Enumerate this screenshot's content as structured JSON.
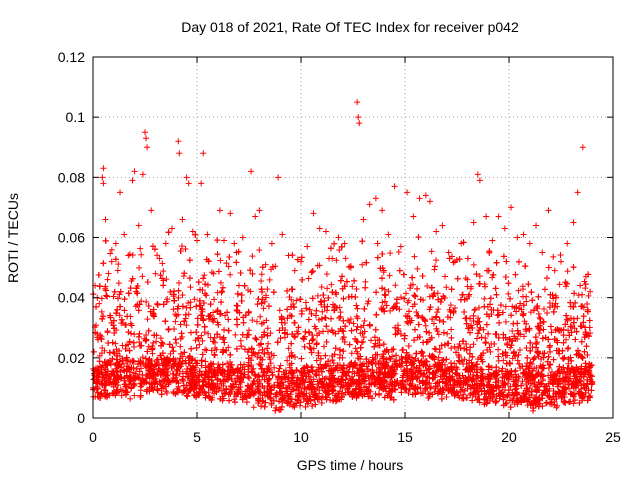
{
  "chart_data": {
    "type": "scatter",
    "title": "Day 018 of 2021, Rate Of TEC Index for receiver p042",
    "xlabel": "GPS time / hours",
    "ylabel": "ROTI / TECUs",
    "xlim": [
      0,
      25
    ],
    "ylim": [
      0,
      0.12
    ],
    "xticks": [
      0,
      5,
      10,
      15,
      20,
      25
    ],
    "xtick_labels": [
      "0",
      "5",
      "10",
      "15",
      "20",
      "25"
    ],
    "yticks": [
      0,
      0.02,
      0.04,
      0.06,
      0.08,
      0.1,
      0.12
    ],
    "ytick_labels": [
      "0",
      "0.02",
      "0.04",
      "0.06",
      "0.08",
      "0.1",
      "0.12"
    ],
    "grid": true,
    "marker": "+",
    "series_color": "#ff0000",
    "series": [
      {
        "name": "ROTI",
        "points": [
          [
            0.1,
            0.044
          ],
          [
            0.2,
            0.028
          ],
          [
            0.3,
            0.038
          ],
          [
            0.45,
            0.08
          ],
          [
            0.5,
            0.083
          ],
          [
            0.5,
            0.078
          ],
          [
            0.6,
            0.066
          ],
          [
            0.7,
            0.046
          ],
          [
            0.9,
            0.052
          ],
          [
            1.1,
            0.058
          ],
          [
            1.3,
            0.075
          ],
          [
            1.5,
            0.061
          ],
          [
            1.7,
            0.054
          ],
          [
            1.9,
            0.079
          ],
          [
            2.0,
            0.082
          ],
          [
            2.2,
            0.064
          ],
          [
            2.4,
            0.081
          ],
          [
            2.5,
            0.095
          ],
          [
            2.55,
            0.093
          ],
          [
            2.6,
            0.09
          ],
          [
            2.8,
            0.069
          ],
          [
            3.0,
            0.048
          ],
          [
            3.2,
            0.053
          ],
          [
            3.5,
            0.058
          ],
          [
            3.8,
            0.063
          ],
          [
            4.1,
            0.092
          ],
          [
            4.15,
            0.088
          ],
          [
            4.3,
            0.066
          ],
          [
            4.5,
            0.08
          ],
          [
            4.6,
            0.078
          ],
          [
            4.8,
            0.062
          ],
          [
            5.0,
            0.059
          ],
          [
            5.2,
            0.078
          ],
          [
            5.3,
            0.088
          ],
          [
            5.5,
            0.061
          ],
          [
            5.8,
            0.048
          ],
          [
            6.1,
            0.069
          ],
          [
            6.3,
            0.059
          ],
          [
            6.6,
            0.068
          ],
          [
            6.9,
            0.055
          ],
          [
            7.2,
            0.06
          ],
          [
            7.6,
            0.082
          ],
          [
            7.8,
            0.067
          ],
          [
            8.0,
            0.069
          ],
          [
            8.3,
            0.051
          ],
          [
            8.6,
            0.058
          ],
          [
            8.9,
            0.08
          ],
          [
            9.1,
            0.061
          ],
          [
            9.4,
            0.054
          ],
          [
            9.7,
            0.049
          ],
          [
            10.0,
            0.052
          ],
          [
            10.3,
            0.057
          ],
          [
            10.6,
            0.068
          ],
          [
            10.9,
            0.063
          ],
          [
            11.2,
            0.062
          ],
          [
            11.5,
            0.053
          ],
          [
            11.8,
            0.06
          ],
          [
            12.1,
            0.058
          ],
          [
            12.4,
            0.05
          ],
          [
            12.7,
            0.105
          ],
          [
            12.75,
            0.1
          ],
          [
            12.8,
            0.098
          ],
          [
            13.0,
            0.066
          ],
          [
            13.3,
            0.071
          ],
          [
            13.6,
            0.073
          ],
          [
            13.9,
            0.069
          ],
          [
            14.2,
            0.061
          ],
          [
            14.5,
            0.077
          ],
          [
            14.8,
            0.057
          ],
          [
            15.1,
            0.075
          ],
          [
            15.4,
            0.067
          ],
          [
            15.7,
            0.073
          ],
          [
            16.0,
            0.074
          ],
          [
            16.2,
            0.072
          ],
          [
            16.5,
            0.062
          ],
          [
            16.8,
            0.064
          ],
          [
            17.1,
            0.055
          ],
          [
            17.4,
            0.052
          ],
          [
            17.7,
            0.058
          ],
          [
            18.0,
            0.046
          ],
          [
            18.3,
            0.065
          ],
          [
            18.5,
            0.081
          ],
          [
            18.6,
            0.079
          ],
          [
            18.9,
            0.067
          ],
          [
            19.2,
            0.059
          ],
          [
            19.5,
            0.067
          ],
          [
            19.8,
            0.063
          ],
          [
            20.1,
            0.07
          ],
          [
            20.4,
            0.06
          ],
          [
            20.7,
            0.061
          ],
          [
            21.0,
            0.058
          ],
          [
            21.3,
            0.064
          ],
          [
            21.6,
            0.055
          ],
          [
            21.9,
            0.069
          ],
          [
            22.2,
            0.049
          ],
          [
            22.5,
            0.052
          ],
          [
            22.8,
            0.058
          ],
          [
            23.1,
            0.065
          ],
          [
            23.3,
            0.075
          ],
          [
            23.55,
            0.09
          ],
          [
            23.7,
            0.047
          ],
          [
            23.9,
            0.042
          ],
          [
            0.0,
            0.01
          ],
          [
            1.0,
            0.012
          ],
          [
            2.0,
            0.011
          ],
          [
            3.0,
            0.013
          ],
          [
            4.0,
            0.012
          ],
          [
            5.0,
            0.011
          ],
          [
            6.0,
            0.013
          ],
          [
            7.0,
            0.01
          ],
          [
            8.0,
            0.012
          ],
          [
            9.0,
            0.011
          ],
          [
            10.0,
            0.013
          ],
          [
            11.0,
            0.012
          ],
          [
            12.0,
            0.01
          ],
          [
            13.0,
            0.013
          ],
          [
            14.0,
            0.012
          ],
          [
            15.0,
            0.011
          ],
          [
            16.0,
            0.012
          ],
          [
            17.0,
            0.013
          ],
          [
            18.0,
            0.011
          ],
          [
            19.0,
            0.012
          ],
          [
            20.0,
            0.013
          ],
          [
            21.0,
            0.01
          ],
          [
            22.0,
            0.012
          ],
          [
            23.0,
            0.011
          ],
          [
            24.0,
            0.012
          ]
        ]
      }
    ]
  }
}
